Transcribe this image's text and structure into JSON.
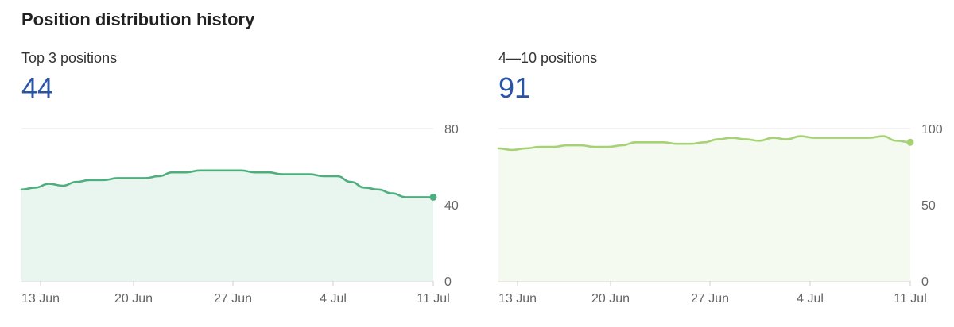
{
  "page": {
    "title": "Position distribution history"
  },
  "panels": [
    {
      "label": "Top 3 positions",
      "value": "44",
      "line_color": "#4fae7d",
      "fill_color": "#e8f6ef"
    },
    {
      "label": "4—10 positions",
      "value": "91",
      "line_color": "#a6d275",
      "fill_color": "#f4faef"
    }
  ],
  "chart_data": [
    {
      "type": "area",
      "title": "Top 3 positions",
      "x_ticks": [
        "13 Jun",
        "20 Jun",
        "27 Jun",
        "4 Jul",
        "11 Jul"
      ],
      "x_start": "11 Jun",
      "x_end": "11 Jul",
      "y_ticks": [
        0,
        40,
        80
      ],
      "ylim": [
        0,
        80
      ],
      "grid": true,
      "y_axis_side": "right",
      "x": [
        0,
        1,
        2,
        3,
        4,
        5,
        6,
        7,
        8,
        9,
        10,
        11,
        12,
        13,
        14,
        15,
        16,
        17,
        18,
        19,
        20,
        21,
        22,
        23,
        24,
        25,
        26,
        27,
        28,
        29,
        30
      ],
      "values": [
        48,
        49,
        51,
        50,
        52,
        53,
        53,
        54,
        54,
        54,
        55,
        57,
        57,
        58,
        58,
        58,
        58,
        57,
        57,
        56,
        56,
        56,
        55,
        55,
        52,
        49,
        48,
        46,
        44,
        44,
        44
      ]
    },
    {
      "type": "area",
      "title": "4—10 positions",
      "x_ticks": [
        "13 Jun",
        "20 Jun",
        "27 Jun",
        "4 Jul",
        "11 Jul"
      ],
      "x_start": "11 Jun",
      "x_end": "11 Jul",
      "y_ticks": [
        0,
        50,
        100
      ],
      "ylim": [
        0,
        100
      ],
      "grid": true,
      "y_axis_side": "right",
      "x": [
        0,
        1,
        2,
        3,
        4,
        5,
        6,
        7,
        8,
        9,
        10,
        11,
        12,
        13,
        14,
        15,
        16,
        17,
        18,
        19,
        20,
        21,
        22,
        23,
        24,
        25,
        26,
        27,
        28,
        29,
        30
      ],
      "values": [
        87,
        86,
        87,
        88,
        88,
        89,
        89,
        88,
        88,
        89,
        91,
        91,
        91,
        90,
        90,
        91,
        93,
        94,
        93,
        92,
        94,
        93,
        95,
        94,
        94,
        94,
        94,
        94,
        95,
        92,
        91
      ]
    }
  ]
}
